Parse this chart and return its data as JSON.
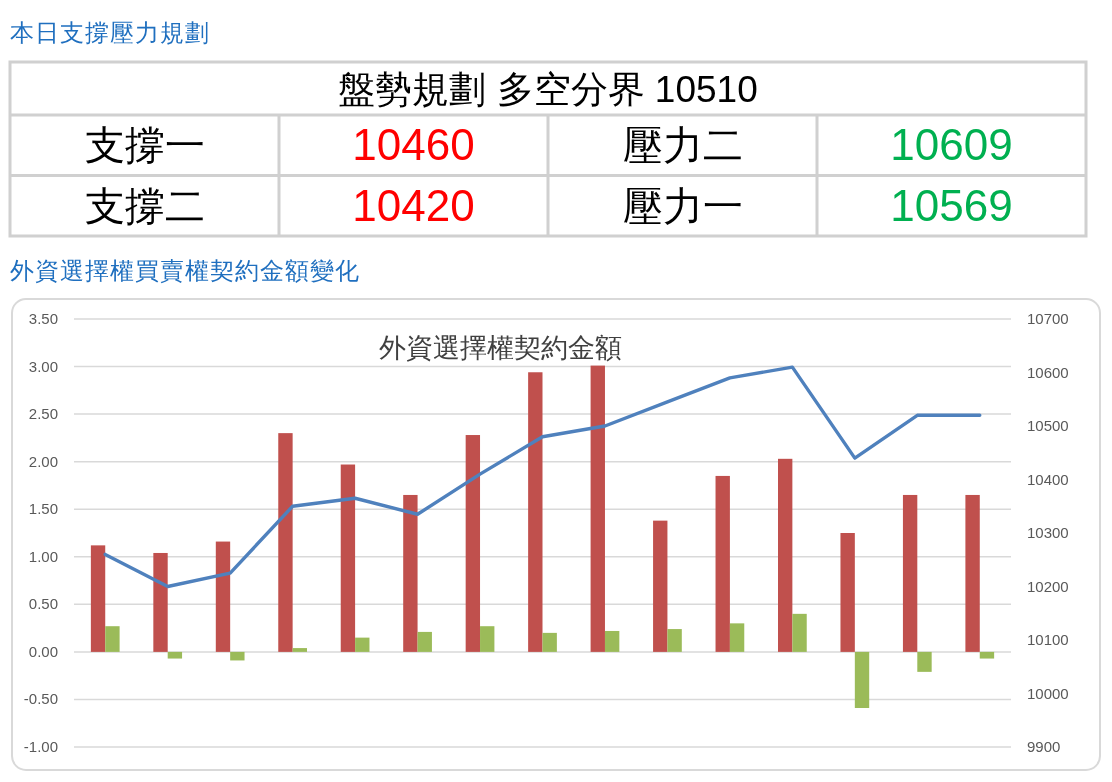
{
  "chart_data": [
    {
      "type": "other",
      "title": "本日支撐壓力規劃",
      "subtitle": "盤勢規劃 多空分界 10510",
      "categories": [
        "支撐一",
        "壓力二",
        "支撐二",
        "壓力一"
      ],
      "values": [
        10460,
        10609,
        10420,
        10569
      ],
      "colors": [
        "#ff0000",
        "#00b050",
        "#ff0000",
        "#00b050"
      ],
      "data_labels": true
    },
    {
      "type": "bar",
      "title": "外資選擇權買賣權契約金額變化",
      "subtitle": "外資選擇權契約金額",
      "categories": [
        null,
        null,
        null,
        null,
        null,
        null,
        null,
        null,
        null,
        null,
        null,
        null,
        null,
        null,
        null
      ],
      "series": [
        {
          "color": "#c0504d",
          "values": [
            1.12,
            1.04,
            1.16,
            2.3,
            1.97,
            1.65,
            2.28,
            2.94,
            3.01,
            1.38,
            1.85,
            2.03,
            1.25,
            1.65,
            1.65
          ]
        },
        {
          "color": "#9bbb59",
          "values": [
            0.27,
            -0.07,
            -0.09,
            0.04,
            0.15,
            0.21,
            0.27,
            0.2,
            0.22,
            0.24,
            0.3,
            0.4,
            -0.59,
            -0.21,
            -0.07
          ]
        },
        {
          "type": "line",
          "axis": "y2",
          "color": "#4f81bd",
          "values": [
            10260,
            10200,
            10225,
            10350,
            10365,
            10335,
            10410,
            10480,
            10500,
            10545,
            10590,
            10610,
            10440,
            10520,
            10520
          ]
        }
      ],
      "ylim": [
        -1,
        3.5
      ],
      "yticks": [
        {
          "value": -1,
          "label": "-1.00"
        },
        {
          "value": -0.5,
          "label": "-0.50"
        },
        {
          "value": 0,
          "label": "0.00"
        },
        {
          "value": 0.5,
          "label": "0.50"
        },
        {
          "value": 1,
          "label": "1.00"
        },
        {
          "value": 1.5,
          "label": "1.50"
        },
        {
          "value": 2,
          "label": "2.00"
        },
        {
          "value": 2.5,
          "label": "2.50"
        },
        {
          "value": 3,
          "label": "3.00"
        },
        {
          "value": 3.5,
          "label": "3.50"
        }
      ],
      "y2lim": [
        9900,
        10700
      ],
      "y2ticks": [
        9900,
        10000,
        10100,
        10200,
        10300,
        10400,
        10500,
        10600,
        10700
      ],
      "grid": "y"
    }
  ]
}
